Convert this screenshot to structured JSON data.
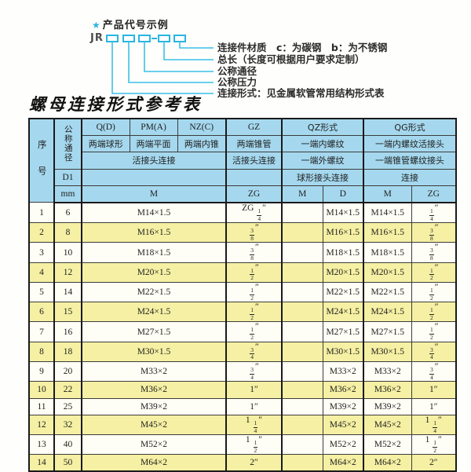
{
  "colors": {
    "accent_cyan": "#2ab5e2",
    "header_blue": "#a5d8ee",
    "row_alt_yellow": "#f5f0a3",
    "border_dark": "#1a1a1a"
  },
  "diagram": {
    "star": "★",
    "heading": "产品代号示例",
    "prefix": "JR",
    "labels": [
      "连接件材质　c：为碳钢　b：为不锈钢",
      "总长（长度可根据用户要求定制）",
      "公称通径",
      "公称压力",
      "连接形式：见金属软管常用结构形式表"
    ]
  },
  "title": "螺母连接形式参考表",
  "table": {
    "header": {
      "seq": "序号",
      "dn": "公称通径",
      "d1": "D1",
      "mm": "mm",
      "col_q": "Q(D)",
      "col_pm": "PM(A)",
      "col_nz": "NZ(C)",
      "col_gz": "GZ",
      "col_qz": "QZ形式",
      "col_qg": "QG形式",
      "q_desc": "两端球形",
      "pm_desc": "两端平面",
      "nz_desc": "两端内锥",
      "gz_desc": "两端锥管",
      "qz_desc1": "一端内螺纹",
      "qg_desc1": "一端内螺纹活接头",
      "union_join": "活接头连接",
      "gz_join": "活接头连接",
      "qz_desc2": "一端外螺纹",
      "qg_desc2": "一端锥管螺纹接头",
      "empty_union": "",
      "empty_gz": "",
      "qz_join": "球形接头连接",
      "qg_join": "连接",
      "m_label": "M",
      "zg_label": "ZG",
      "qz_m_label": "M",
      "qz_d_label": "D",
      "qg_m_label": "M",
      "qg_zg_label": "ZG"
    },
    "rows": [
      {
        "no": "1",
        "dn": "6",
        "m": "M14×1.5",
        "gz": "ZG 1/4″",
        "qz_m": "",
        "qz_d": "M14×1.5",
        "qg_m": "M14×1.5",
        "qg_zg": "1/4″"
      },
      {
        "no": "2",
        "dn": "8",
        "m": "M16×1.5",
        "gz": "3/8″",
        "qz_m": "",
        "qz_d": "M16×1.5",
        "qg_m": "M16×1.5",
        "qg_zg": "3/8″"
      },
      {
        "no": "3",
        "dn": "10",
        "m": "M18×1.5",
        "gz": "3/8″",
        "qz_m": "",
        "qz_d": "M18×1.5",
        "qg_m": "M18×1.5",
        "qg_zg": "3/8″"
      },
      {
        "no": "4",
        "dn": "12",
        "m": "M20×1.5",
        "gz": "1/2″",
        "qz_m": "",
        "qz_d": "M20×1.5",
        "qg_m": "M20×1.5",
        "qg_zg": "1/2″"
      },
      {
        "no": "5",
        "dn": "14",
        "m": "M22×1.5",
        "gz": "1/2″",
        "qz_m": "",
        "qz_d": "M22×1.5",
        "qg_m": "M22×1.5",
        "qg_zg": "1/2″"
      },
      {
        "no": "6",
        "dn": "15",
        "m": "M24×1.5",
        "gz": "1/2″",
        "qz_m": "",
        "qz_d": "M24×1.5",
        "qg_m": "M24×1.5",
        "qg_zg": "1/2″"
      },
      {
        "no": "7",
        "dn": "16",
        "m": "M27×1.5",
        "gz": "1/2″",
        "qz_m": "",
        "qz_d": "M27×1.5",
        "qg_m": "M27×1.5",
        "qg_zg": "1/2″"
      },
      {
        "no": "8",
        "dn": "18",
        "m": "M30×1.5",
        "gz": "3/4″",
        "qz_m": "",
        "qz_d": "M30×1.5",
        "qg_m": "M30×1.5",
        "qg_zg": "3/4″"
      },
      {
        "no": "9",
        "dn": "20",
        "m": "M33×2",
        "gz": "3/4″",
        "qz_m": "",
        "qz_d": "M33×2",
        "qg_m": "M33×2",
        "qg_zg": "3/4″"
      },
      {
        "no": "10",
        "dn": "22",
        "m": "M36×2",
        "gz": "1″",
        "qz_m": "",
        "qz_d": "M36×2",
        "qg_m": "M36×2",
        "qg_zg": "1″"
      },
      {
        "no": "11",
        "dn": "25",
        "m": "M39×2",
        "gz": "1″",
        "qz_m": "",
        "qz_d": "M39×2",
        "qg_m": "M39×2",
        "qg_zg": "1″"
      },
      {
        "no": "12",
        "dn": "32",
        "m": "M45×2",
        "gz": "1 1/4″",
        "qz_m": "",
        "qz_d": "M45×2",
        "qg_m": "M45×2",
        "qg_zg": "1 1/4″"
      },
      {
        "no": "13",
        "dn": "40",
        "m": "M52×2",
        "gz": "1 1/2″",
        "qz_m": "",
        "qz_d": "M52×2",
        "qg_m": "M52×2",
        "qg_zg": "1 1/2″"
      },
      {
        "no": "14",
        "dn": "50",
        "m": "M64×2",
        "gz": "2″",
        "qz_m": "",
        "qz_d": "M64×2",
        "qg_m": "M64×2",
        "qg_zg": "2″"
      }
    ]
  }
}
